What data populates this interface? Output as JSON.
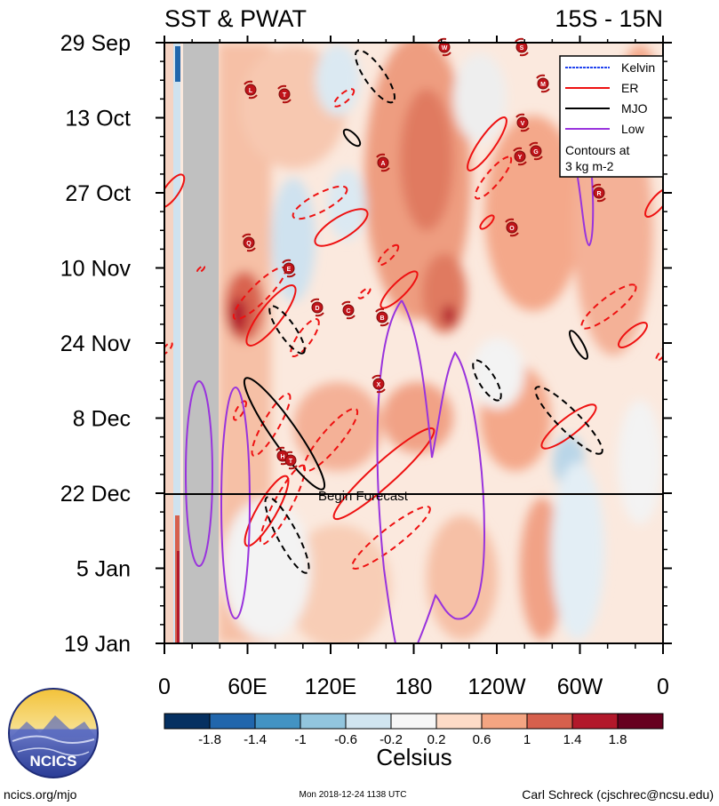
{
  "chart_data": {
    "type": "heatmap",
    "title_left": "SST & PWAT",
    "title_right": "15S - 15N",
    "y_labels": [
      "29 Sep",
      "13 Oct",
      "27 Oct",
      "10 Nov",
      "24 Nov",
      "8 Dec",
      "22 Dec",
      "5 Jan",
      "19 Jan"
    ],
    "x_labels": [
      "0",
      "60E",
      "120E",
      "180",
      "120W",
      "60W",
      "0"
    ],
    "x_range_deg": [
      0,
      360
    ],
    "forecast_line_label": "Begin Forecast",
    "forecast_start": "22 Dec",
    "legend": {
      "entries": [
        {
          "name": "Kelvin",
          "color": "#2244ee",
          "dashed": true
        },
        {
          "name": "ER",
          "color": "#ee1111",
          "dashed": false
        },
        {
          "name": "MJO",
          "color": "#000000",
          "dashed": false
        },
        {
          "name": "Low",
          "color": "#9933dd",
          "dashed": false
        }
      ],
      "note_line1": "Contours at",
      "note_line2": "3 kg m-2"
    },
    "colorbar": {
      "label": "Celsius",
      "tick_labels": [
        "-1.8",
        "-1.4",
        "-1",
        "-0.6",
        "-0.2",
        "0.2",
        "0.6",
        "1",
        "1.4",
        "1.8"
      ],
      "colors": [
        "#053061",
        "#2166ac",
        "#4393c3",
        "#92c5de",
        "#d1e5f0",
        "#f7f7f7",
        "#fddbc7",
        "#f4a582",
        "#d6604d",
        "#b2182b",
        "#67001f"
      ]
    },
    "storm_labels": [
      "W",
      "S",
      "M",
      "L",
      "T",
      "V",
      "A",
      "G",
      "Y",
      "Q",
      "E",
      "D",
      "C",
      "B",
      "X",
      "R",
      "O",
      "H",
      "T"
    ]
  },
  "branding": {
    "logo_text": "NCICS",
    "url": "ncics.org/mjo",
    "timestamp": "Mon 2018-12-24 1138 UTC",
    "author": "Carl Schreck (cjschrec@ncsu.edu)"
  }
}
